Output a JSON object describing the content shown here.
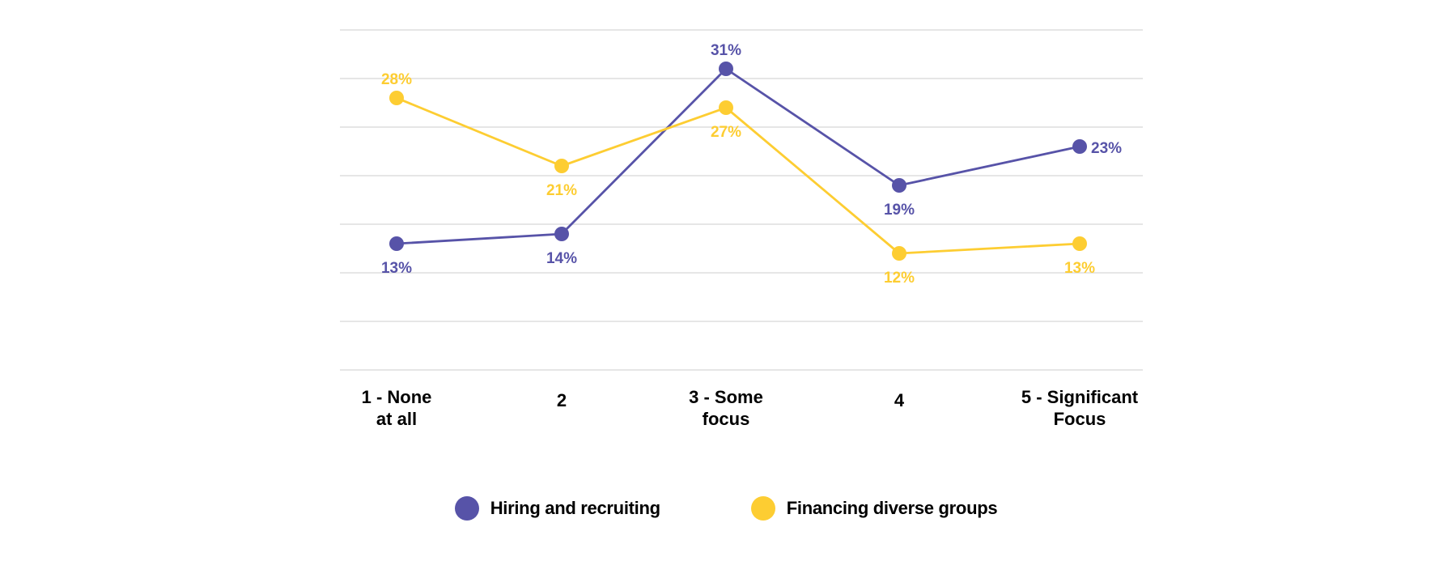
{
  "chart_data": {
    "type": "line",
    "title": "",
    "xlabel": "",
    "ylabel": "",
    "categories": [
      [
        "1 - None",
        "at all"
      ],
      [
        "2"
      ],
      [
        "3 - Some",
        "focus"
      ],
      [
        "4"
      ],
      [
        "5 - Significant",
        "Focus"
      ]
    ],
    "series": [
      {
        "name": "Hiring and recruiting",
        "color": "#5753A8",
        "values": [
          13,
          14,
          31,
          19,
          23
        ],
        "labels": [
          "13%",
          "14%",
          "31%",
          "19%",
          "23%"
        ],
        "label_positions": [
          "below",
          "below",
          "above",
          "below",
          "right"
        ]
      },
      {
        "name": "Financing diverse groups",
        "color": "#FDCD32",
        "values": [
          28,
          21,
          27,
          12,
          13
        ],
        "labels": [
          "28%",
          "21%",
          "27%",
          "12%",
          "13%"
        ],
        "label_positions": [
          "above",
          "below",
          "below",
          "below",
          "below"
        ]
      }
    ],
    "ylim": [
      0,
      35
    ],
    "y_tick_labels_shown": false,
    "grid": true,
    "gridline_color": "#DDDDDD",
    "legend_position": "bottom"
  }
}
